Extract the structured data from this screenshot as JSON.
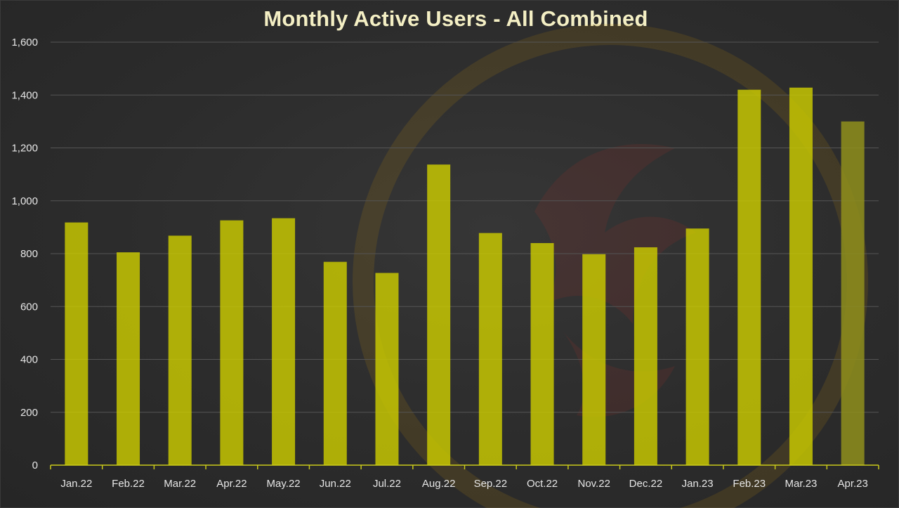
{
  "chart_data": {
    "type": "bar",
    "title": "Monthly Active Users - All Combined",
    "xlabel": "",
    "ylabel": "",
    "categories": [
      "Jan.22",
      "Feb.22",
      "Mar.22",
      "Apr.22",
      "May.22",
      "Jun.22",
      "Jul.22",
      "Aug.22",
      "Sep.22",
      "Oct.22",
      "Nov.22",
      "Dec.22",
      "Jan.23",
      "Feb.23",
      "Mar.23",
      "Apr.23"
    ],
    "values": [
      918,
      805,
      868,
      926,
      934,
      769,
      727,
      1137,
      878,
      840,
      798,
      824,
      895,
      1420,
      1428,
      1300
    ],
    "ylim": [
      0,
      1600
    ],
    "yticks": [
      0,
      200,
      400,
      600,
      800,
      1000,
      1200,
      1400,
      1600
    ],
    "ytick_labels": [
      "0",
      "200",
      "400",
      "600",
      "800",
      "1,000",
      "1,200",
      "1,400",
      "1,600"
    ],
    "grid": true,
    "legend": "none",
    "colors": {
      "bar": "#cccc00",
      "bar_last": "#8f8f1c",
      "axis": "#c9c91a",
      "grid": "#555555",
      "tick_text": "#e6e6e6",
      "title": "#f4efc4"
    }
  }
}
